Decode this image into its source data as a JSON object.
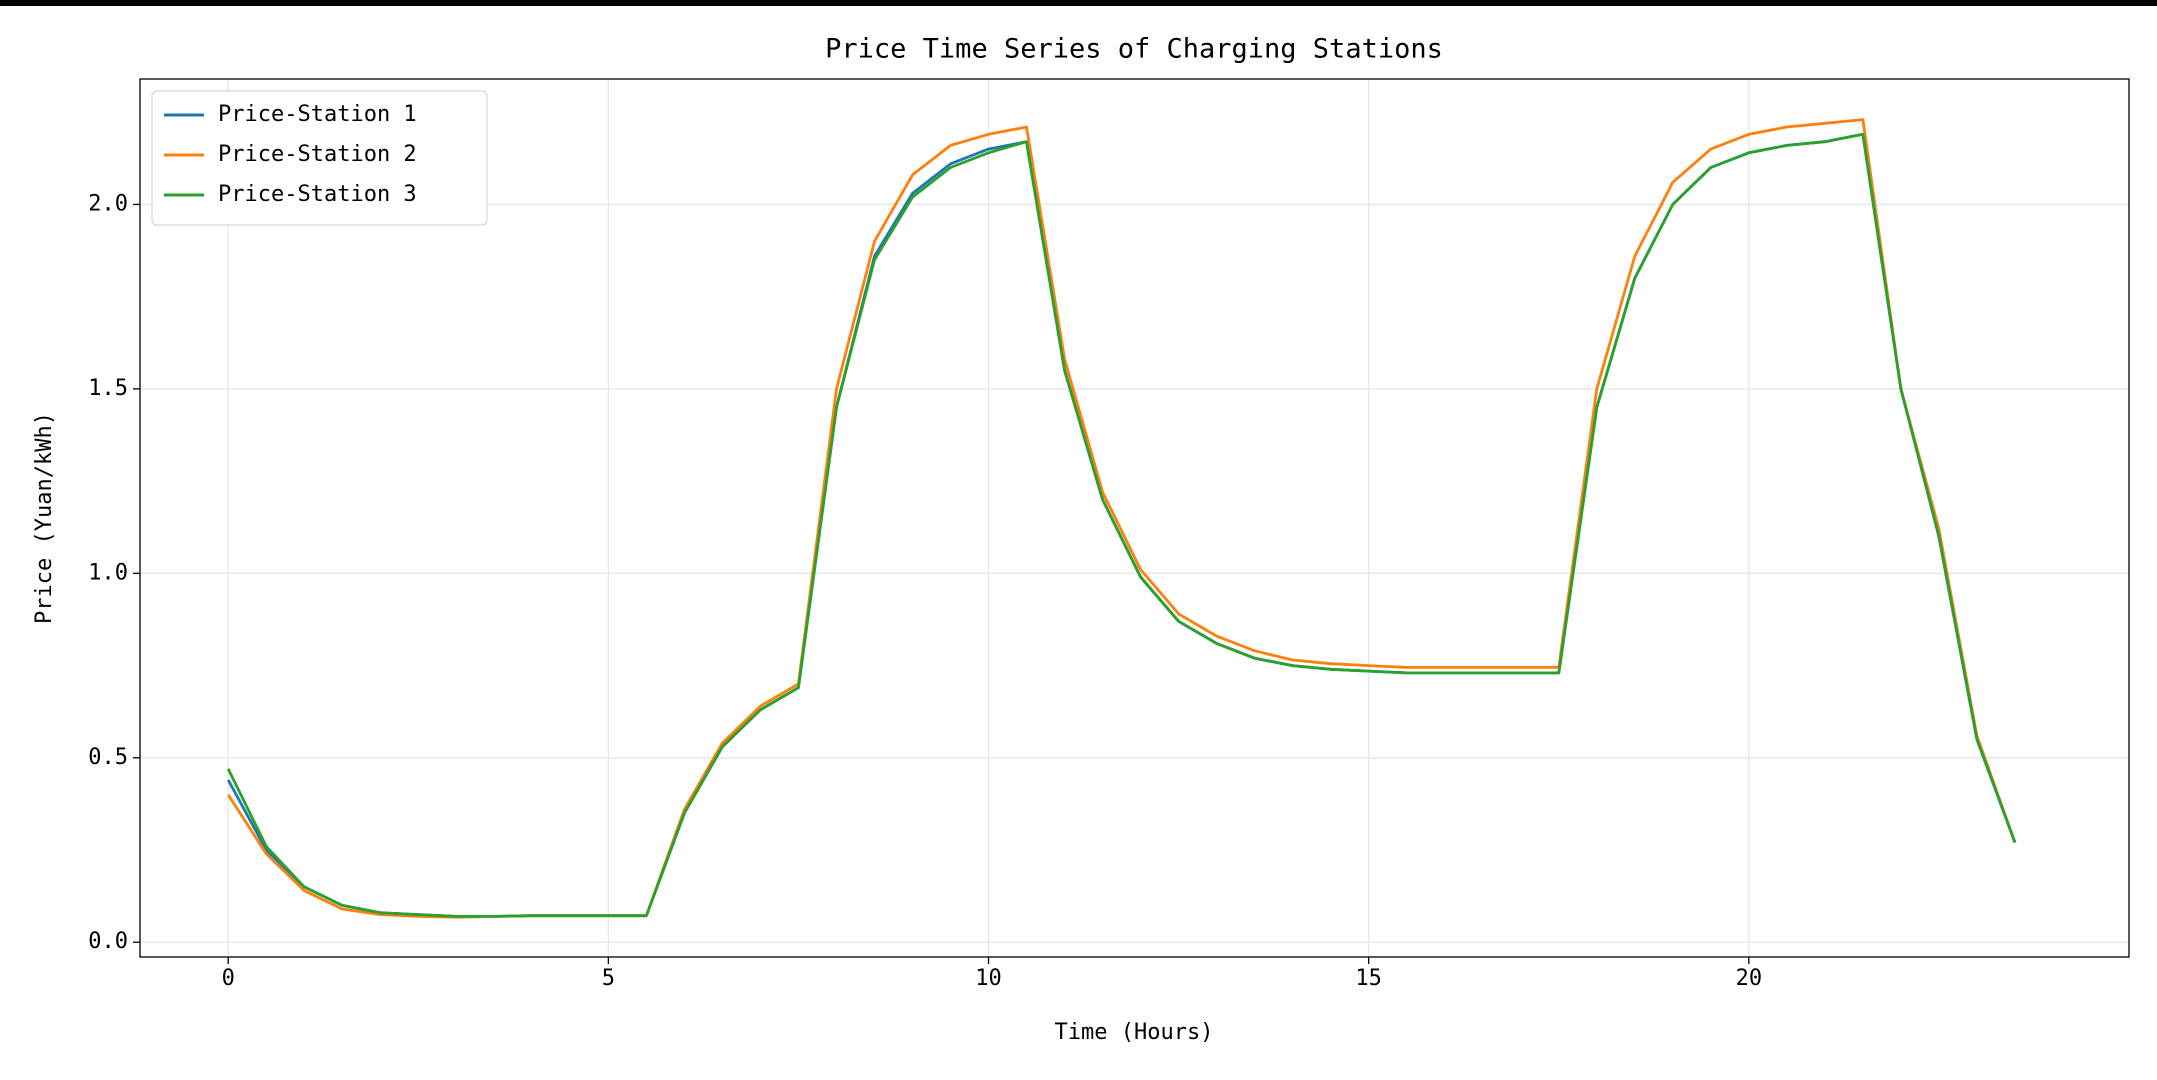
{
  "chart_data": {
    "type": "line",
    "title": "Price Time Series of Charging Stations",
    "x_label": "Time (Hours)",
    "y_label": "Price (Yuan/kWh)",
    "x": [
      0,
      0.5,
      1,
      1.5,
      2,
      2.5,
      3,
      3.5,
      4,
      4.5,
      5,
      5.5,
      6,
      6.5,
      7,
      7.5,
      8,
      8.5,
      9,
      9.5,
      10,
      10.5,
      11,
      11.5,
      12,
      12.5,
      13,
      13.5,
      14,
      14.5,
      15,
      15.5,
      16,
      16.5,
      17,
      17.5,
      18,
      18.5,
      19,
      19.5,
      20,
      20.5,
      21,
      21.5,
      22,
      22.5,
      23,
      23.5
    ],
    "series": [
      {
        "name": "Price-Station 1",
        "color": "#1f77b4",
        "values": [
          0.44,
          0.25,
          0.15,
          0.1,
          0.08,
          0.075,
          0.07,
          0.07,
          0.072,
          0.072,
          0.072,
          0.072,
          0.35,
          0.53,
          0.63,
          0.69,
          1.45,
          1.86,
          2.03,
          2.11,
          2.15,
          2.17,
          1.55,
          1.2,
          0.99,
          0.87,
          0.81,
          0.77,
          0.75,
          0.74,
          0.735,
          0.73,
          0.73,
          0.73,
          0.73,
          0.73,
          1.45,
          1.8,
          2.0,
          2.1,
          2.14,
          2.16,
          2.17,
          2.19,
          1.5,
          1.1,
          0.55,
          0.27
        ]
      },
      {
        "name": "Price-Station 2",
        "color": "#ff7f0e",
        "values": [
          0.4,
          0.24,
          0.14,
          0.09,
          0.075,
          0.07,
          0.068,
          0.07,
          0.072,
          0.072,
          0.072,
          0.072,
          0.36,
          0.54,
          0.64,
          0.7,
          1.5,
          1.9,
          2.08,
          2.16,
          2.19,
          2.21,
          1.58,
          1.22,
          1.01,
          0.89,
          0.83,
          0.79,
          0.765,
          0.755,
          0.75,
          0.745,
          0.745,
          0.745,
          0.745,
          0.745,
          1.5,
          1.86,
          2.06,
          2.15,
          2.19,
          2.21,
          2.22,
          2.23,
          1.5,
          1.12,
          0.56,
          0.27
        ]
      },
      {
        "name": "Price-Station 3",
        "color": "#2ca02c",
        "values": [
          0.47,
          0.26,
          0.15,
          0.1,
          0.08,
          0.075,
          0.07,
          0.07,
          0.072,
          0.072,
          0.072,
          0.072,
          0.35,
          0.53,
          0.63,
          0.69,
          1.45,
          1.85,
          2.02,
          2.1,
          2.14,
          2.17,
          1.55,
          1.2,
          0.99,
          0.87,
          0.81,
          0.77,
          0.75,
          0.74,
          0.735,
          0.73,
          0.73,
          0.73,
          0.73,
          0.73,
          1.45,
          1.8,
          2.0,
          2.1,
          2.14,
          2.16,
          2.17,
          2.19,
          1.5,
          1.1,
          0.55,
          0.27
        ]
      }
    ],
    "xlim": [
      -1.16,
      25.0
    ],
    "ylim": [
      -0.04,
      2.34
    ],
    "xticks": [
      0,
      5,
      10,
      15,
      20
    ],
    "yticks": [
      {
        "value": 0,
        "label": "0.0"
      },
      0.5,
      {
        "value": 1,
        "label": "1.0"
      },
      1.5,
      {
        "value": 2,
        "label": "2.0"
      }
    ],
    "grid": true,
    "legend": "upper-left"
  }
}
